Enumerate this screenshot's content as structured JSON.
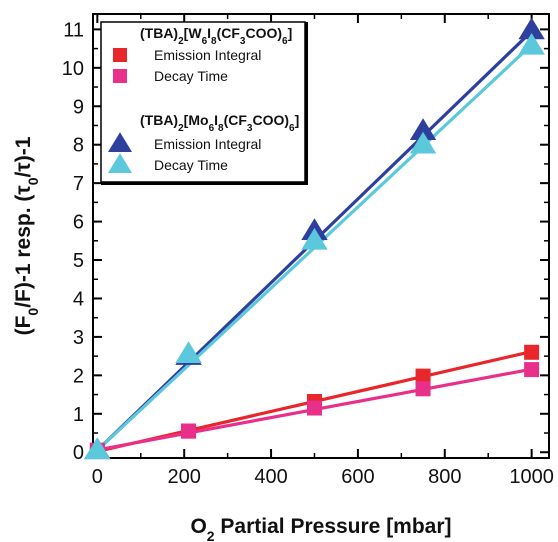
{
  "chart_data": {
    "type": "scatter",
    "title": "",
    "xlabel": "O2 Partial Pressure [mbar]",
    "ylabel": "(F0/F)-1 resp. (τ0/τ)-1",
    "xlim": [
      -10,
      1040
    ],
    "ylim": [
      -0.15,
      11.4
    ],
    "xticks": [
      0,
      200,
      400,
      600,
      800,
      1000
    ],
    "yticks": [
      0,
      1,
      2,
      3,
      4,
      5,
      6,
      7,
      8,
      9,
      10,
      11
    ],
    "grid": false,
    "legend_position": "top-left",
    "legend_groups": [
      {
        "title": "(TBA)2[W6I8(CF3COO)6]",
        "entries": [
          0,
          1
        ]
      },
      {
        "title": "(TBA)2[Mo6I8(CF3COO)6]",
        "entries": [
          2,
          3
        ]
      }
    ],
    "series": [
      {
        "name": "Emission Integral",
        "marker": "square",
        "color": "#e8262b",
        "x": [
          0,
          210,
          500,
          750,
          1000
        ],
        "y": [
          0.05,
          0.55,
          1.32,
          1.98,
          2.6
        ],
        "fit": [
          [
            0,
            0.02
          ],
          [
            1000,
            2.62
          ]
        ]
      },
      {
        "name": "Decay Time",
        "marker": "square",
        "color": "#e8308a",
        "x": [
          0,
          210,
          500,
          750,
          1000
        ],
        "y": [
          0.05,
          0.55,
          1.15,
          1.65,
          2.15
        ],
        "fit": [
          [
            0,
            0.06
          ],
          [
            1000,
            2.16
          ]
        ]
      },
      {
        "name": "Emission Integral",
        "marker": "triangle",
        "color": "#2e3f9e",
        "x": [
          0,
          210,
          500,
          750,
          1000
        ],
        "y": [
          0.05,
          2.5,
          5.75,
          8.35,
          10.97
        ],
        "fit": [
          [
            0,
            0.05
          ],
          [
            1000,
            10.95
          ]
        ]
      },
      {
        "name": "Decay Time",
        "marker": "triangle",
        "color": "#5bc8dc",
        "x": [
          0,
          210,
          500,
          750,
          1000
        ],
        "y": [
          0.05,
          2.55,
          5.5,
          8.0,
          10.57
        ],
        "fit": [
          [
            0,
            0.05
          ],
          [
            1000,
            10.6
          ]
        ]
      }
    ]
  }
}
